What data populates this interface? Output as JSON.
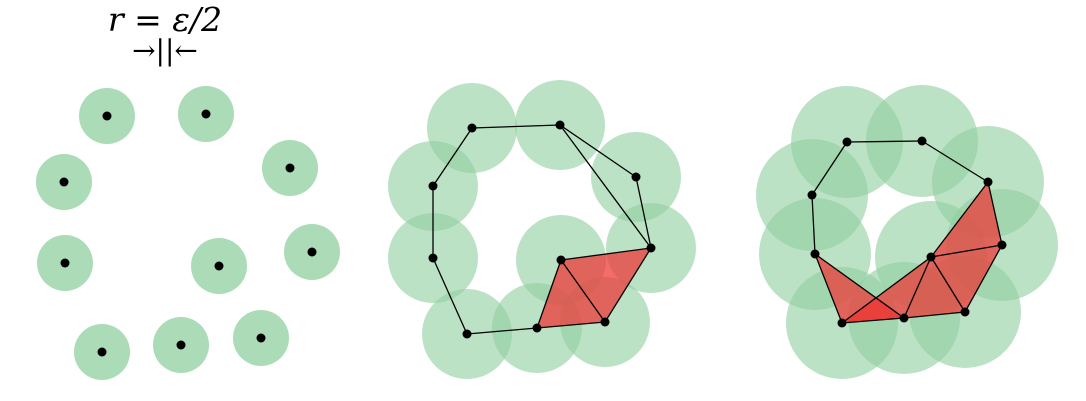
{
  "annotation": {
    "radius_label": "r = ε/2",
    "arrow_marker": "→||←"
  },
  "colors": {
    "ball_fill": "#8fcf9f",
    "point": "#000000",
    "edge": "#000000",
    "triangle_fill": "#ee3333"
  },
  "panels": [
    {
      "name": "points-with-radius-balls",
      "ball_radius": 28,
      "points": [
        [
          107,
          116
        ],
        [
          206,
          114
        ],
        [
          64,
          182
        ],
        [
          290,
          168
        ],
        [
          65,
          263
        ],
        [
          219,
          266
        ],
        [
          312,
          252
        ],
        [
          102,
          352
        ],
        [
          181,
          345
        ],
        [
          261,
          338
        ]
      ],
      "edges": [],
      "triangles": []
    },
    {
      "name": "complex-with-overlapping-balls",
      "ball_radius": 45,
      "points": [
        [
          472,
          128
        ],
        [
          560,
          125
        ],
        [
          433,
          186
        ],
        [
          636,
          177
        ],
        [
          433,
          258
        ],
        [
          561,
          260
        ],
        [
          651,
          248
        ],
        [
          467,
          334
        ],
        [
          537,
          328
        ],
        [
          605,
          322
        ]
      ],
      "edges": [
        [
          0,
          1
        ],
        [
          1,
          3
        ],
        [
          3,
          6
        ],
        [
          6,
          1
        ],
        [
          0,
          2
        ],
        [
          2,
          4
        ],
        [
          4,
          7
        ],
        [
          7,
          8
        ],
        [
          8,
          5
        ],
        [
          5,
          6
        ],
        [
          5,
          9
        ],
        [
          6,
          9
        ],
        [
          8,
          9
        ]
      ],
      "triangles": [
        [
          5,
          6,
          9
        ],
        [
          5,
          8,
          9
        ]
      ]
    },
    {
      "name": "complex-with-larger-balls",
      "ball_radius": 56,
      "points": [
        [
          847,
          142
        ],
        [
          922,
          141
        ],
        [
          812,
          195
        ],
        [
          988,
          182
        ],
        [
          815,
          254
        ],
        [
          931,
          257
        ],
        [
          1002,
          245
        ],
        [
          842,
          323
        ],
        [
          904,
          318
        ],
        [
          965,
          312
        ]
      ],
      "edges": [
        [
          0,
          1
        ],
        [
          1,
          3
        ],
        [
          0,
          2
        ],
        [
          2,
          4
        ],
        [
          4,
          7
        ],
        [
          7,
          8
        ],
        [
          8,
          9
        ],
        [
          8,
          5
        ],
        [
          5,
          9
        ],
        [
          5,
          3
        ],
        [
          3,
          6
        ],
        [
          5,
          6
        ],
        [
          6,
          9
        ],
        [
          4,
          8
        ],
        [
          5,
          7
        ]
      ],
      "triangles": [
        [
          3,
          5,
          6
        ],
        [
          5,
          6,
          9
        ],
        [
          5,
          8,
          9
        ],
        [
          4,
          7,
          8
        ],
        [
          5,
          7,
          8
        ]
      ]
    }
  ]
}
